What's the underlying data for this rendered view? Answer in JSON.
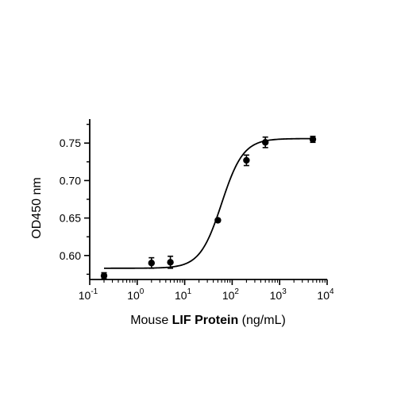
{
  "chart_data": {
    "type": "scatter",
    "title": "",
    "xlabel": {
      "parts": [
        {
          "text": "Mouse ",
          "bold": false
        },
        {
          "text": "LIF Protein",
          "bold": true
        },
        {
          "text": " (ng/mL)",
          "bold": false
        }
      ]
    },
    "ylabel": "OD450 nm",
    "x_scale": "log",
    "xlim": [
      0.1,
      10000
    ],
    "ylim": [
      0.568,
      0.782
    ],
    "x_ticks": [
      {
        "value": 0.1,
        "base": "10",
        "exp": "-1"
      },
      {
        "value": 1,
        "base": "10",
        "exp": "0"
      },
      {
        "value": 10,
        "base": "10",
        "exp": "1"
      },
      {
        "value": 100,
        "base": "10",
        "exp": "2"
      },
      {
        "value": 1000,
        "base": "10",
        "exp": "3"
      },
      {
        "value": 10000,
        "base": "10",
        "exp": "4"
      }
    ],
    "y_ticks": [
      {
        "value": 0.6,
        "label": "0.60"
      },
      {
        "value": 0.65,
        "label": "0.65"
      },
      {
        "value": 0.7,
        "label": "0.70"
      },
      {
        "value": 0.75,
        "label": "0.75"
      }
    ],
    "grid": false,
    "legend": "none",
    "series": [
      {
        "points": [
          {
            "x": 0.2,
            "y": 0.573,
            "err": 0.004
          },
          {
            "x": 2,
            "y": 0.59,
            "err": 0.007
          },
          {
            "x": 5,
            "y": 0.591,
            "err": 0.008
          },
          {
            "x": 50,
            "y": 0.647,
            "err": 0.002
          },
          {
            "x": 200,
            "y": 0.727,
            "err": 0.007
          },
          {
            "x": 500,
            "y": 0.751,
            "err": 0.007
          },
          {
            "x": 5000,
            "y": 0.755,
            "err": 0.004
          }
        ],
        "fit": {
          "model": "4PL",
          "bottom": 0.583,
          "top": 0.756,
          "ec50": 60,
          "hill": 1.9
        }
      }
    ],
    "colors": {
      "points": "#000000",
      "curve": "#000000",
      "axes": "#000000"
    }
  }
}
